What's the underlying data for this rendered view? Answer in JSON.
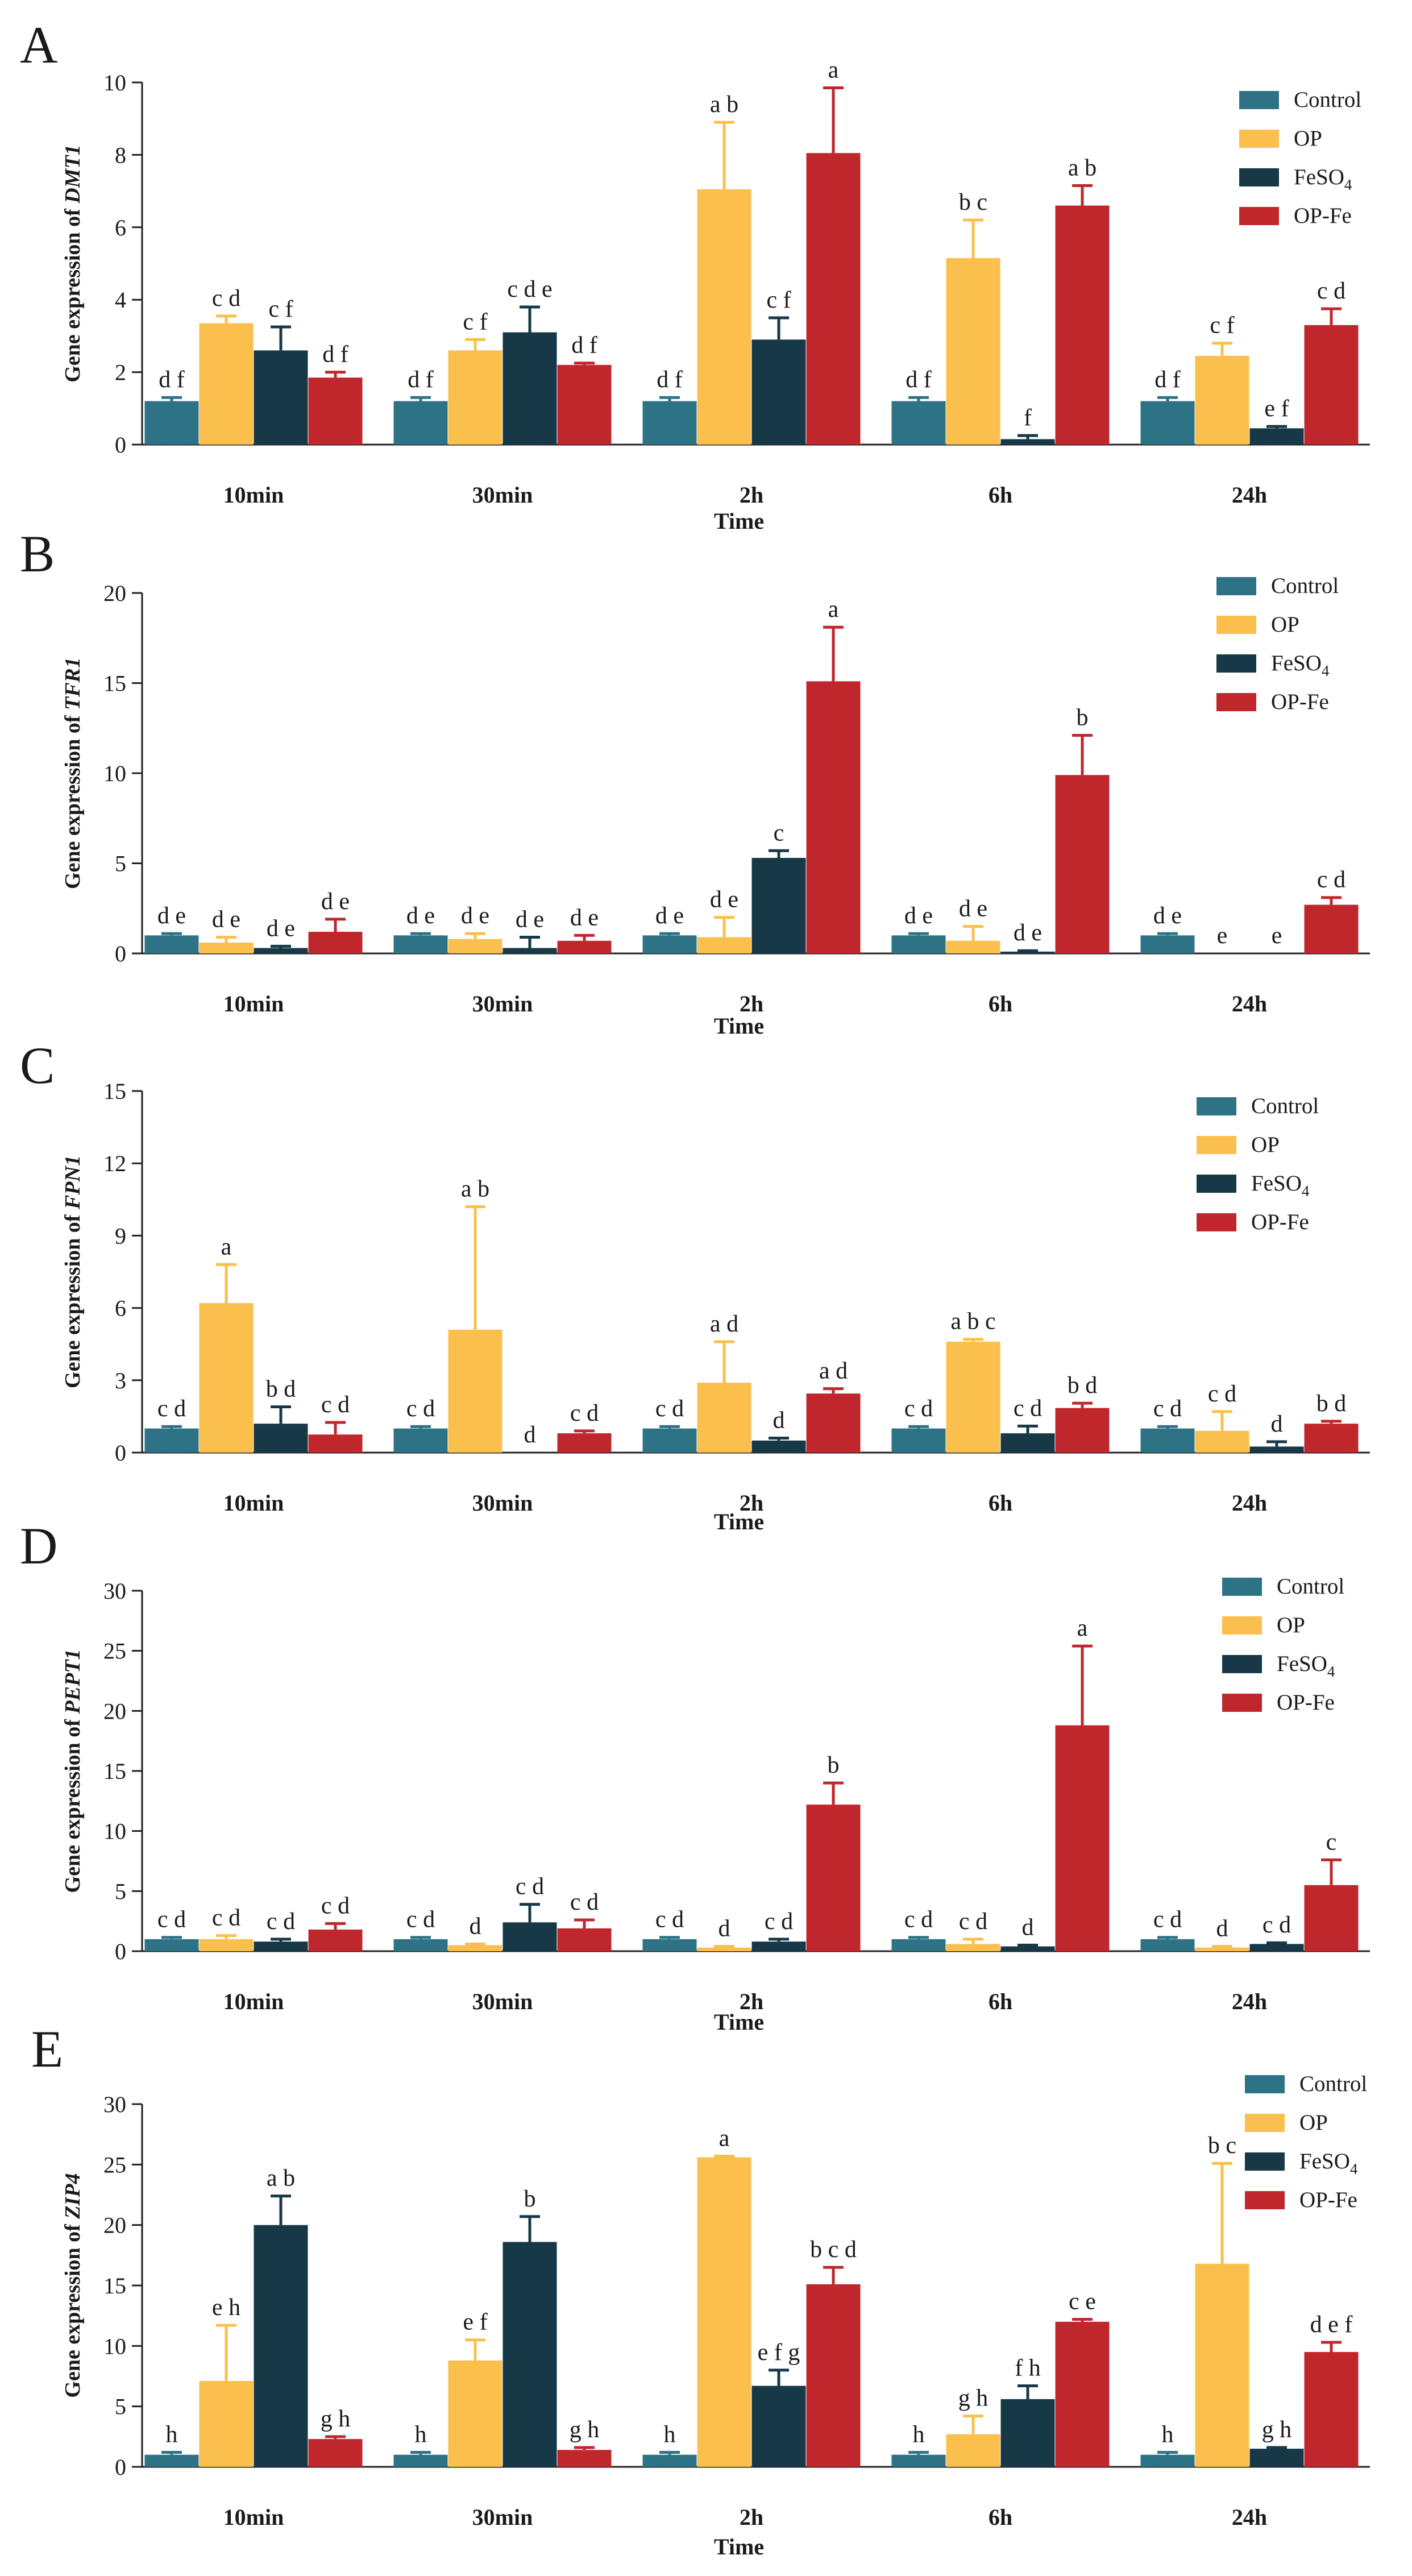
{
  "figure": {
    "panel_labels": [
      "A",
      "B",
      "C",
      "D",
      "E"
    ],
    "colors": {
      "Control": "#2e7285",
      "OP": "#fbbf4d",
      "FeSO4": "#163847",
      "OP-Fe": "#c0272d"
    },
    "legend_labels": {
      "Control": "Control",
      "OP": "OP",
      "FeSO4_base": "FeSO",
      "FeSO4_sub": "4",
      "OP-Fe": "OP-Fe"
    }
  },
  "chart_data": [
    {
      "panel": "A",
      "type": "bar",
      "title": "",
      "xlabel": "Time",
      "ylabel_prefix": "Gene expression of ",
      "gene": "DMT1",
      "categories": [
        "10min",
        "30min",
        "2h",
        "6h",
        "24h"
      ],
      "ylim": [
        0,
        10
      ],
      "yticks": [
        0,
        2,
        4,
        6,
        8,
        10
      ],
      "series": [
        {
          "name": "Control",
          "values": [
            1.2,
            1.2,
            1.2,
            1.2,
            1.2
          ],
          "errors": [
            0.1,
            0.1,
            0.1,
            0.1,
            0.1
          ],
          "labels": [
            "d f",
            "d f",
            "d f",
            "d f",
            "d f"
          ]
        },
        {
          "name": "OP",
          "values": [
            3.35,
            2.6,
            7.05,
            5.15,
            2.45
          ],
          "errors": [
            0.2,
            0.3,
            1.85,
            1.05,
            0.35
          ],
          "labels": [
            "c d",
            "c f",
            "a b",
            "b c",
            "c f"
          ]
        },
        {
          "name": "FeSO4",
          "values": [
            2.6,
            3.1,
            2.9,
            0.15,
            0.45
          ],
          "errors": [
            0.65,
            0.7,
            0.6,
            0.1,
            0.05
          ],
          "labels": [
            "c f",
            "c d e",
            "c f",
            "f",
            "e f"
          ]
        },
        {
          "name": "OP-Fe",
          "values": [
            1.85,
            2.2,
            8.05,
            6.6,
            3.3
          ],
          "errors": [
            0.15,
            0.05,
            1.8,
            0.55,
            0.45
          ],
          "labels": [
            "d f",
            "d f",
            "a",
            "a b",
            "c d"
          ]
        }
      ]
    },
    {
      "panel": "B",
      "type": "bar",
      "title": "",
      "xlabel": "Time",
      "ylabel_prefix": "Gene expression of ",
      "gene": "TFR1",
      "categories": [
        "10min",
        "30min",
        "2h",
        "6h",
        "24h"
      ],
      "ylim": [
        0,
        20
      ],
      "yticks": [
        0,
        5,
        10,
        15,
        20
      ],
      "series": [
        {
          "name": "Control",
          "values": [
            1.0,
            1.0,
            1.0,
            1.0,
            1.0
          ],
          "errors": [
            0.1,
            0.1,
            0.1,
            0.1,
            0.1
          ],
          "labels": [
            "d e",
            "d e",
            "d e",
            "d e",
            "d e"
          ]
        },
        {
          "name": "OP",
          "values": [
            0.6,
            0.8,
            0.9,
            0.7,
            0.0
          ],
          "errors": [
            0.3,
            0.3,
            1.1,
            0.8,
            0.0
          ],
          "labels": [
            "d e",
            "d e",
            "d e",
            "d e",
            "e"
          ]
        },
        {
          "name": "FeSO4",
          "values": [
            0.3,
            0.3,
            5.3,
            0.1,
            0.0
          ],
          "errors": [
            0.1,
            0.6,
            0.4,
            0.05,
            0.0
          ],
          "labels": [
            "d e",
            "d e",
            "c",
            "d e",
            "e"
          ]
        },
        {
          "name": "OP-Fe",
          "values": [
            1.2,
            0.7,
            15.1,
            9.9,
            2.7
          ],
          "errors": [
            0.7,
            0.3,
            3.0,
            2.2,
            0.4
          ],
          "labels": [
            "d e",
            "d e",
            "a",
            "b",
            "c d"
          ]
        }
      ]
    },
    {
      "panel": "C",
      "type": "bar",
      "title": "",
      "xlabel": "Time",
      "ylabel_prefix": "Gene expression of ",
      "gene": "FPN1",
      "categories": [
        "10min",
        "30min",
        "2h",
        "6h",
        "24h"
      ],
      "ylim": [
        0,
        15
      ],
      "yticks": [
        0,
        3,
        6,
        9,
        12,
        15
      ],
      "series": [
        {
          "name": "Control",
          "values": [
            1.0,
            1.0,
            1.0,
            1.0,
            1.0
          ],
          "errors": [
            0.08,
            0.08,
            0.08,
            0.08,
            0.08
          ],
          "labels": [
            "c d",
            "c d",
            "c d",
            "c d",
            "c d"
          ]
        },
        {
          "name": "OP",
          "values": [
            6.2,
            5.1,
            2.9,
            4.6,
            0.9
          ],
          "errors": [
            1.6,
            5.1,
            1.7,
            0.1,
            0.8
          ],
          "labels": [
            "a",
            "a b",
            "a d",
            "a b c",
            "c d"
          ]
        },
        {
          "name": "FeSO4",
          "values": [
            1.2,
            0.0,
            0.5,
            0.8,
            0.25
          ],
          "errors": [
            0.7,
            0.0,
            0.1,
            0.3,
            0.2
          ],
          "labels": [
            "b d",
            "d",
            "d",
            "c d",
            "d"
          ]
        },
        {
          "name": "OP-Fe",
          "values": [
            0.75,
            0.8,
            2.45,
            1.85,
            1.2
          ],
          "errors": [
            0.5,
            0.1,
            0.2,
            0.2,
            0.1
          ],
          "labels": [
            "c d",
            "c d",
            "a d",
            "b d",
            "b d"
          ]
        }
      ]
    },
    {
      "panel": "D",
      "type": "bar",
      "title": "",
      "xlabel": "Time",
      "ylabel_prefix": "Gene expression of ",
      "gene": "PEPT1",
      "categories": [
        "10min",
        "30min",
        "2h",
        "6h",
        "24h"
      ],
      "ylim": [
        0,
        30
      ],
      "yticks": [
        0,
        5,
        10,
        15,
        20,
        25,
        30
      ],
      "series": [
        {
          "name": "Control",
          "values": [
            1.0,
            1.0,
            1.0,
            1.0,
            1.0
          ],
          "errors": [
            0.15,
            0.15,
            0.15,
            0.15,
            0.15
          ],
          "labels": [
            "c d",
            "c d",
            "c d",
            "c d",
            "c d"
          ]
        },
        {
          "name": "OP",
          "values": [
            1.0,
            0.5,
            0.3,
            0.6,
            0.3
          ],
          "errors": [
            0.3,
            0.1,
            0.1,
            0.4,
            0.1
          ],
          "labels": [
            "c d",
            "d",
            "d",
            "c d",
            "d"
          ]
        },
        {
          "name": "FeSO4",
          "values": [
            0.8,
            2.4,
            0.8,
            0.4,
            0.6
          ],
          "errors": [
            0.2,
            1.5,
            0.2,
            0.1,
            0.1
          ],
          "labels": [
            "c d",
            "c d",
            "c d",
            "d",
            "c d"
          ]
        },
        {
          "name": "OP-Fe",
          "values": [
            1.8,
            1.9,
            12.2,
            18.8,
            5.5
          ],
          "errors": [
            0.5,
            0.7,
            1.8,
            6.6,
            2.1
          ],
          "labels": [
            "c d",
            "c d",
            "b",
            "a",
            "c"
          ]
        }
      ]
    },
    {
      "panel": "E",
      "type": "bar",
      "title": "",
      "xlabel": "Time",
      "ylabel_prefix": "Gene expression of ",
      "gene": "ZIP4",
      "categories": [
        "10min",
        "30min",
        "2h",
        "6h",
        "24h"
      ],
      "ylim": [
        0,
        30
      ],
      "yticks": [
        0,
        5,
        10,
        15,
        20,
        25,
        30
      ],
      "series": [
        {
          "name": "Control",
          "values": [
            1.0,
            1.0,
            1.0,
            1.0,
            1.0
          ],
          "errors": [
            0.2,
            0.2,
            0.2,
            0.2,
            0.2
          ],
          "labels": [
            "h",
            "h",
            "h",
            "h",
            "h"
          ]
        },
        {
          "name": "OP",
          "values": [
            7.1,
            8.8,
            25.6,
            2.7,
            16.8
          ],
          "errors": [
            4.6,
            1.7,
            0.1,
            1.5,
            8.3
          ],
          "labels": [
            "e h",
            "e f",
            "a",
            "g h",
            "b c"
          ]
        },
        {
          "name": "FeSO4",
          "values": [
            20.0,
            18.6,
            6.7,
            5.6,
            1.5
          ],
          "errors": [
            2.4,
            2.1,
            1.3,
            1.1,
            0.1
          ],
          "labels": [
            "a b",
            "b",
            "e f g",
            "f h",
            "g h"
          ]
        },
        {
          "name": "OP-Fe",
          "values": [
            2.3,
            1.4,
            15.1,
            12.0,
            9.5
          ],
          "errors": [
            0.2,
            0.2,
            1.4,
            0.2,
            0.8
          ],
          "labels": [
            "g h",
            "g h",
            "b c d",
            "c e",
            "d e f"
          ]
        }
      ]
    }
  ]
}
